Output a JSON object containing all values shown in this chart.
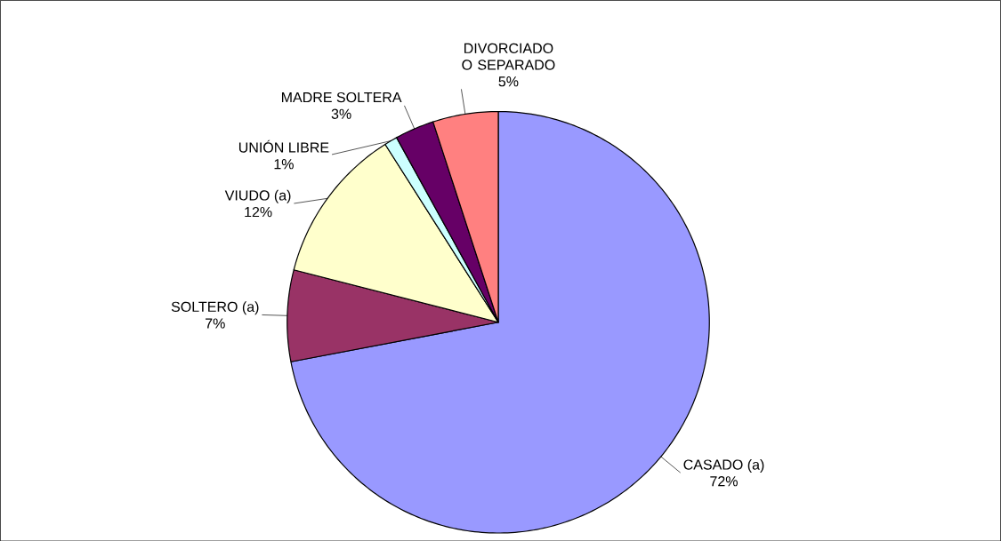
{
  "chart_data": {
    "type": "pie",
    "categories": [
      "CASADO (a)",
      "SOLTERO (a)",
      "VIUDO (a)",
      "UNIÓN LIBRE",
      "MADRE SOLTERA",
      "DIVORCIADO O SEPARADO"
    ],
    "values": [
      72,
      7,
      12,
      1,
      3,
      5
    ],
    "value_labels": [
      "72%",
      "7%",
      "12%",
      "1%",
      "3%",
      "5%"
    ],
    "colors": [
      "#9999ff",
      "#993366",
      "#ffffcc",
      "#ccffff",
      "#660066",
      "#ff8080"
    ]
  }
}
